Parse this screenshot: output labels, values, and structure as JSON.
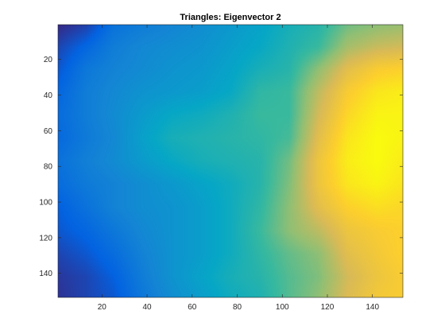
{
  "figure": {
    "title": "Triangles: Eigenvector 2"
  },
  "chart_data": {
    "type": "heatmap",
    "title": "Triangles: Eigenvector 2",
    "xlabel": "",
    "ylabel": "",
    "xlim": [
      0.5,
      153.5
    ],
    "ylim": [
      153.5,
      0.5
    ],
    "y_reversed": true,
    "xticks": [
      20,
      40,
      60,
      80,
      100,
      120,
      140
    ],
    "yticks": [
      20,
      40,
      60,
      80,
      100,
      120,
      140
    ],
    "colormap": "parula",
    "colormap_stops": [
      "#352a87",
      "#0363e1",
      "#1485d4",
      "#06a7c6",
      "#38b99e",
      "#92bf73",
      "#d9ba56",
      "#fcce2e",
      "#f9fb0e"
    ],
    "grid": false,
    "legend": "none",
    "value_range": [
      0,
      1
    ],
    "grid_x": [
      1,
      13,
      25,
      38,
      51,
      64,
      77,
      90,
      103,
      116,
      129,
      142,
      153
    ],
    "grid_y": [
      1,
      13,
      25,
      38,
      51,
      64,
      77,
      90,
      103,
      116,
      129,
      142,
      153
    ],
    "values": [
      [
        0.0,
        0.05,
        0.18,
        0.22,
        0.25,
        0.28,
        0.32,
        0.36,
        0.42,
        0.46,
        0.58,
        0.62,
        0.64
      ],
      [
        0.06,
        0.14,
        0.22,
        0.26,
        0.28,
        0.3,
        0.34,
        0.38,
        0.44,
        0.5,
        0.66,
        0.72,
        0.74
      ],
      [
        0.1,
        0.2,
        0.24,
        0.27,
        0.3,
        0.32,
        0.36,
        0.42,
        0.46,
        0.62,
        0.78,
        0.86,
        0.88
      ],
      [
        0.14,
        0.22,
        0.26,
        0.3,
        0.32,
        0.34,
        0.38,
        0.48,
        0.5,
        0.7,
        0.86,
        0.94,
        0.96
      ],
      [
        0.16,
        0.22,
        0.27,
        0.33,
        0.38,
        0.4,
        0.44,
        0.5,
        0.5,
        0.74,
        0.9,
        0.98,
        0.98
      ],
      [
        0.15,
        0.21,
        0.26,
        0.35,
        0.42,
        0.44,
        0.46,
        0.48,
        0.52,
        0.78,
        0.94,
        1.0,
        0.98
      ],
      [
        0.18,
        0.23,
        0.27,
        0.33,
        0.38,
        0.42,
        0.44,
        0.46,
        0.58,
        0.82,
        0.96,
        1.0,
        0.96
      ],
      [
        0.16,
        0.21,
        0.24,
        0.28,
        0.32,
        0.36,
        0.4,
        0.46,
        0.6,
        0.82,
        0.94,
        0.98,
        0.94
      ],
      [
        0.12,
        0.18,
        0.24,
        0.28,
        0.3,
        0.34,
        0.4,
        0.48,
        0.62,
        0.78,
        0.88,
        0.92,
        0.9
      ],
      [
        0.1,
        0.14,
        0.2,
        0.26,
        0.3,
        0.34,
        0.4,
        0.5,
        0.62,
        0.7,
        0.82,
        0.86,
        0.88
      ],
      [
        0.06,
        0.1,
        0.16,
        0.24,
        0.3,
        0.34,
        0.4,
        0.48,
        0.56,
        0.62,
        0.78,
        0.84,
        0.88
      ],
      [
        0.03,
        0.06,
        0.12,
        0.22,
        0.3,
        0.36,
        0.42,
        0.46,
        0.54,
        0.6,
        0.74,
        0.82,
        0.86
      ],
      [
        0.02,
        0.06,
        0.1,
        0.2,
        0.28,
        0.34,
        0.4,
        0.44,
        0.54,
        0.62,
        0.76,
        0.84,
        0.86
      ]
    ]
  }
}
